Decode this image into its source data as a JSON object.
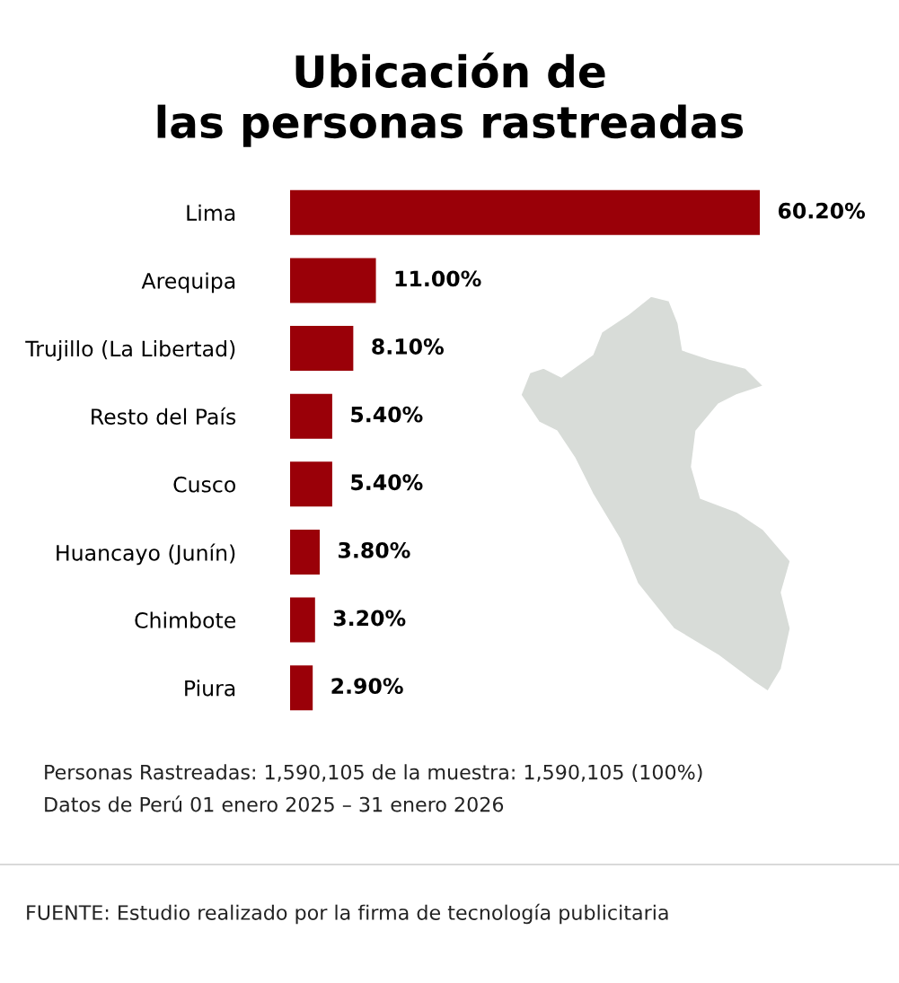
{
  "chart_data": {
    "type": "bar",
    "orientation": "horizontal",
    "title": "Ubicación de\nlas personas rastreadas",
    "categories": [
      "Lima",
      "Arequipa",
      "Trujillo (La Libertad)",
      "Resto del País",
      "Cusco",
      "Huancayo (Junín)",
      "Chimbote",
      "Piura"
    ],
    "values": [
      60.2,
      11.0,
      8.1,
      5.4,
      5.4,
      3.8,
      3.2,
      2.9
    ],
    "value_labels": [
      "60.20%",
      "11.00%",
      "8.10%",
      "5.40%",
      "5.40%",
      "3.80%",
      "3.20%",
      "2.90%"
    ],
    "color": "#9a0008",
    "annotations": [
      "Personas Rastreadas: 1,590,105 de la muestra: 1,590,105 (100%)",
      "Datos de Perú 01 enero 2025 – 31 enero 2026",
      "FUENTE: Estudio realizado por la firma de tecnología publicitaria"
    ]
  }
}
